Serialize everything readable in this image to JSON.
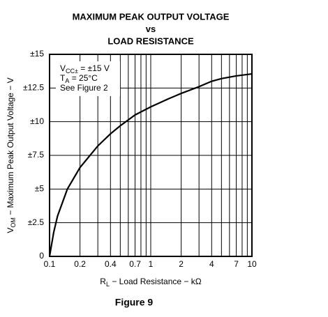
{
  "chart_data": {
    "type": "line",
    "title_lines": [
      "MAXIMUM PEAK OUTPUT VOLTAGE",
      "vs",
      "LOAD RESISTANCE"
    ],
    "y_label": {
      "main": "V",
      "sub": "OM",
      "rest": " − Maximum Peak Output Voltage − V"
    },
    "x_label": {
      "main": "R",
      "sub": "L",
      "rest": " − Load Resistance − kΩ"
    },
    "caption": "Figure 9",
    "annotation": [
      {
        "main": "V",
        "sub": "CC±",
        "rest": " = ±15 V"
      },
      {
        "main": "T",
        "sub": "A",
        "rest": " = 25°C"
      },
      {
        "main": "See Figure 2",
        "sub": "",
        "rest": ""
      }
    ],
    "x": [
      0.1,
      0.11,
      0.12,
      0.15,
      0.2,
      0.3,
      0.4,
      0.5,
      0.7,
      1,
      1.5,
      2,
      3,
      4,
      5,
      7,
      10
    ],
    "values": [
      0,
      1.8,
      3.0,
      5.0,
      6.6,
      8.2,
      9.1,
      9.7,
      10.5,
      11.1,
      11.7,
      12.1,
      12.6,
      13.0,
      13.2,
      13.4,
      13.55
    ],
    "color": "#000000",
    "xlog": true,
    "xlim": [
      0.1,
      10
    ],
    "xticks": [
      0.1,
      0.2,
      0.4,
      0.7,
      1,
      2,
      4,
      7,
      10
    ],
    "xminorticks": [
      0.3,
      0.5,
      0.6,
      0.8,
      0.9,
      3,
      5,
      6,
      8,
      9
    ],
    "ylim": [
      0,
      15
    ],
    "yticks": [
      0,
      {
        "value": 2.5,
        "label": "±2.5"
      },
      {
        "value": 5,
        "label": "±5"
      },
      {
        "value": 7.5,
        "label": "±7.5"
      },
      {
        "value": 10,
        "label": "±10"
      },
      {
        "value": 12.5,
        "label": "±12.5"
      },
      {
        "value": 15,
        "label": "±15"
      }
    ],
    "grid": true
  }
}
